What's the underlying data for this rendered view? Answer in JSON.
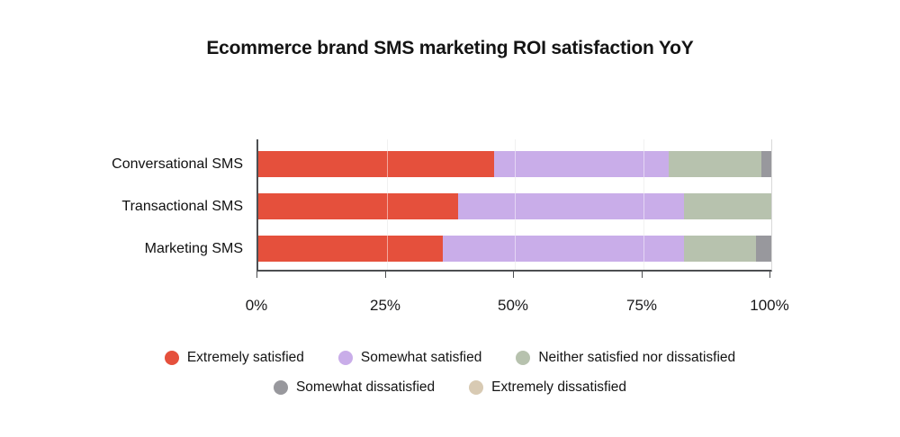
{
  "title": "Ecommerce brand SMS marketing ROI satisfaction YoY",
  "chart_data": {
    "type": "bar",
    "orientation": "horizontal",
    "stacked": true,
    "title": "Ecommerce brand SMS marketing ROI satisfaction YoY",
    "categories": [
      "Conversational SMS",
      "Transactional SMS",
      "Marketing SMS"
    ],
    "series": [
      {
        "name": "Extremely satisfied",
        "color": "#e5503c",
        "values": [
          46,
          39,
          36
        ]
      },
      {
        "name": "Somewhat satisfied",
        "color": "#c9ade9",
        "values": [
          34,
          44,
          47
        ]
      },
      {
        "name": "Neither satisfied nor dissatisfied",
        "color": "#b7c2ae",
        "values": [
          18,
          17,
          14
        ]
      },
      {
        "name": "Somewhat dissatisfied",
        "color": "#98989d",
        "values": [
          2,
          0,
          3
        ]
      },
      {
        "name": "Extremely dissatisfied",
        "color": "#d8cab3",
        "values": [
          0,
          0,
          0
        ]
      }
    ],
    "x_ticks": [
      "0%",
      "25%",
      "50%",
      "75%",
      "100%"
    ],
    "xlim": [
      0,
      100
    ],
    "grid": "vertical gridlines at 25/50/75",
    "legend_position": "bottom",
    "legend_rows": [
      [
        0,
        1,
        2
      ],
      [
        3,
        4
      ]
    ]
  }
}
